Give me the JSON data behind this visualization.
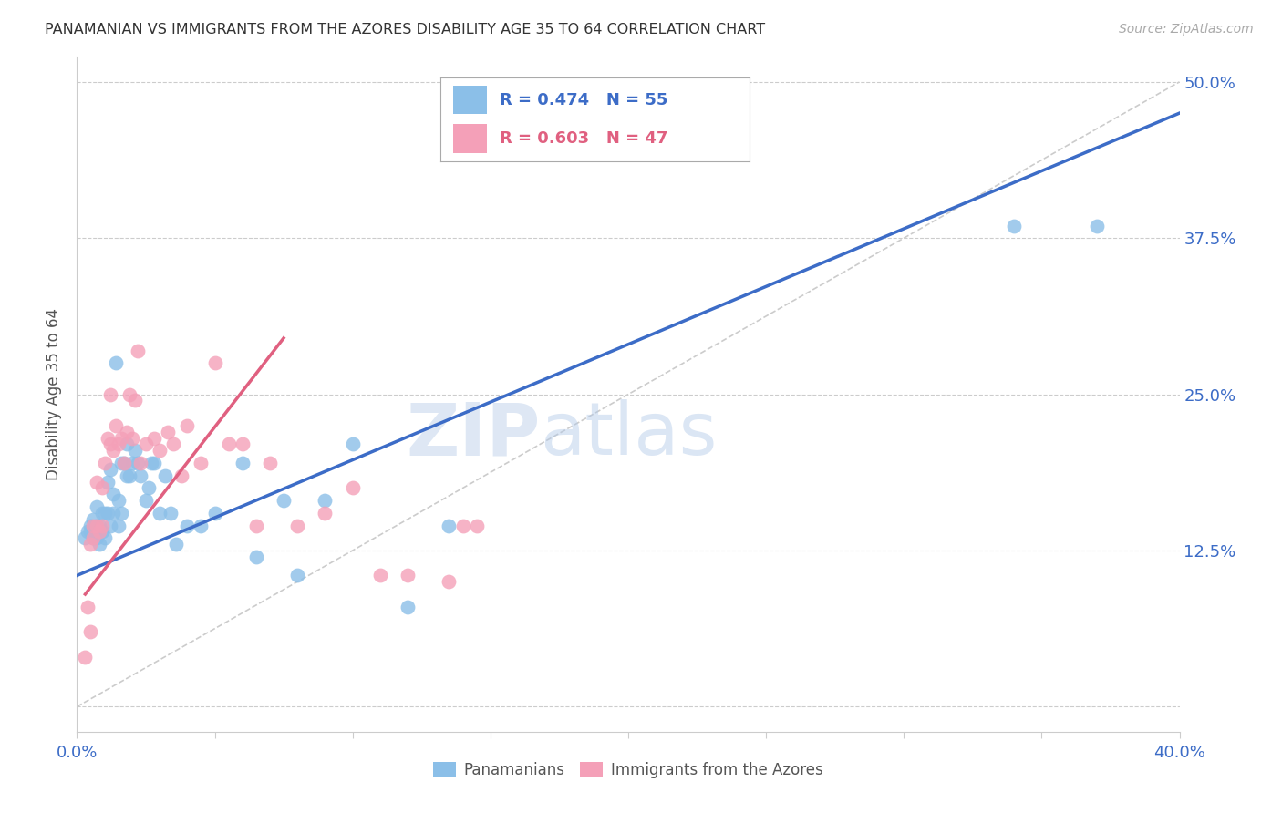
{
  "title": "PANAMANIAN VS IMMIGRANTS FROM THE AZORES DISABILITY AGE 35 TO 64 CORRELATION CHART",
  "source": "Source: ZipAtlas.com",
  "ylabel_label": "Disability Age 35 to 64",
  "xlim": [
    0.0,
    0.4
  ],
  "ylim": [
    -0.02,
    0.52
  ],
  "color_blue": "#8bbfe8",
  "color_pink": "#f4a0b8",
  "trendline_blue": "#3c6cc7",
  "trendline_pink": "#e06080",
  "trendline_gray": "#cccccc",
  "watermark_zip": "ZIP",
  "watermark_atlas": "atlas",
  "blue_scatter_x": [
    0.003,
    0.004,
    0.005,
    0.005,
    0.006,
    0.006,
    0.007,
    0.007,
    0.007,
    0.008,
    0.008,
    0.009,
    0.009,
    0.01,
    0.01,
    0.011,
    0.011,
    0.012,
    0.012,
    0.013,
    0.013,
    0.014,
    0.015,
    0.015,
    0.016,
    0.016,
    0.017,
    0.018,
    0.018,
    0.019,
    0.02,
    0.021,
    0.022,
    0.023,
    0.025,
    0.026,
    0.027,
    0.028,
    0.03,
    0.032,
    0.034,
    0.036,
    0.04,
    0.045,
    0.05,
    0.06,
    0.065,
    0.075,
    0.08,
    0.09,
    0.1,
    0.12,
    0.135,
    0.34,
    0.37
  ],
  "blue_scatter_y": [
    0.135,
    0.14,
    0.14,
    0.145,
    0.135,
    0.15,
    0.135,
    0.145,
    0.16,
    0.13,
    0.145,
    0.14,
    0.155,
    0.135,
    0.155,
    0.155,
    0.18,
    0.145,
    0.19,
    0.155,
    0.17,
    0.275,
    0.145,
    0.165,
    0.155,
    0.195,
    0.195,
    0.21,
    0.185,
    0.185,
    0.195,
    0.205,
    0.195,
    0.185,
    0.165,
    0.175,
    0.195,
    0.195,
    0.155,
    0.185,
    0.155,
    0.13,
    0.145,
    0.145,
    0.155,
    0.195,
    0.12,
    0.165,
    0.105,
    0.165,
    0.21,
    0.08,
    0.145,
    0.385,
    0.385
  ],
  "pink_scatter_x": [
    0.003,
    0.004,
    0.005,
    0.005,
    0.006,
    0.006,
    0.007,
    0.007,
    0.008,
    0.009,
    0.009,
    0.01,
    0.011,
    0.012,
    0.012,
    0.013,
    0.014,
    0.015,
    0.016,
    0.017,
    0.018,
    0.019,
    0.02,
    0.021,
    0.022,
    0.023,
    0.025,
    0.028,
    0.03,
    0.033,
    0.035,
    0.038,
    0.04,
    0.045,
    0.05,
    0.055,
    0.06,
    0.065,
    0.07,
    0.08,
    0.09,
    0.1,
    0.11,
    0.12,
    0.135,
    0.14,
    0.145
  ],
  "pink_scatter_y": [
    0.04,
    0.08,
    0.13,
    0.06,
    0.135,
    0.145,
    0.18,
    0.145,
    0.14,
    0.145,
    0.175,
    0.195,
    0.215,
    0.25,
    0.21,
    0.205,
    0.225,
    0.21,
    0.215,
    0.195,
    0.22,
    0.25,
    0.215,
    0.245,
    0.285,
    0.195,
    0.21,
    0.215,
    0.205,
    0.22,
    0.21,
    0.185,
    0.225,
    0.195,
    0.275,
    0.21,
    0.21,
    0.145,
    0.195,
    0.145,
    0.155,
    0.175,
    0.105,
    0.105,
    0.1,
    0.145,
    0.145
  ],
  "blue_trend_x0": 0.0,
  "blue_trend_y0": 0.105,
  "blue_trend_x1": 0.4,
  "blue_trend_y1": 0.475,
  "pink_trend_x0": 0.003,
  "pink_trend_y0": 0.09,
  "pink_trend_x1": 0.075,
  "pink_trend_y1": 0.295,
  "gray_trend_x0": 0.0,
  "gray_trend_y0": 0.0,
  "gray_trend_x1": 0.4,
  "gray_trend_y1": 0.5
}
